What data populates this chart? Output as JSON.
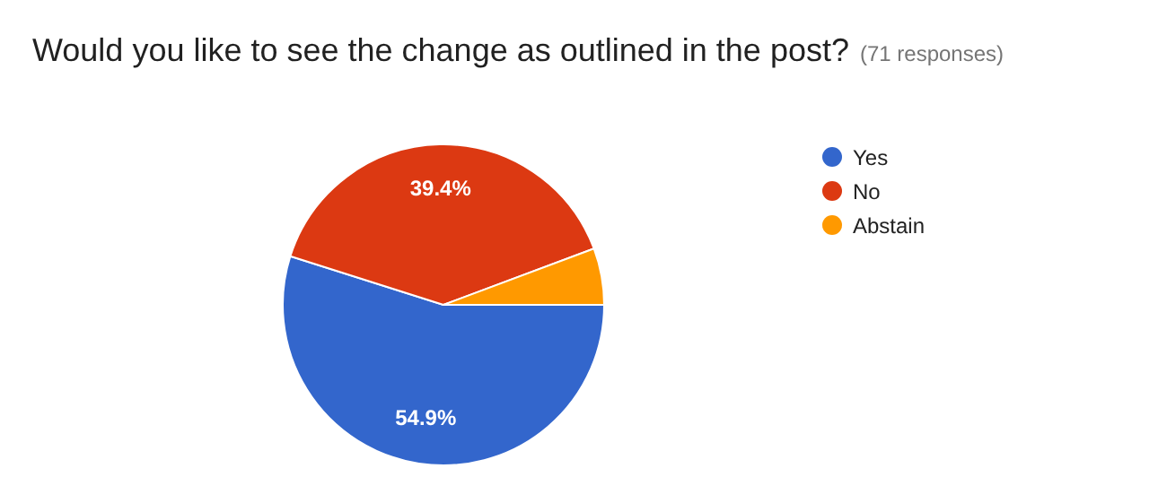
{
  "chart_data": {
    "type": "pie",
    "title": "Would you like to see the change as outlined in the post?",
    "subtitle": "(71 responses)",
    "categories": [
      "Yes",
      "No",
      "Abstain"
    ],
    "values": [
      54.9,
      39.4,
      5.7
    ],
    "value_labels": [
      "54.9%",
      "39.4%",
      null
    ],
    "colors": [
      "#3366cc",
      "#dc3912",
      "#ff9900"
    ],
    "legend": "right"
  }
}
